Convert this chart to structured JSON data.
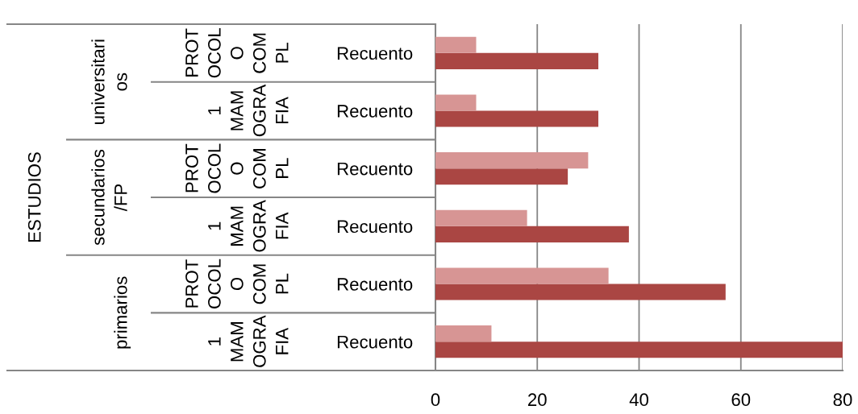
{
  "chart_data": {
    "type": "bar",
    "orientation": "horizontal",
    "categories": [
      "Recuento",
      "Recuento",
      "Recuento",
      "Recuento",
      "Recuento",
      "Recuento"
    ],
    "series": [
      {
        "color": "#aa4643",
        "values": [
          32,
          32,
          26,
          38,
          57,
          80
        ]
      },
      {
        "color": "#d79594",
        "values": [
          8,
          8,
          30,
          18,
          34,
          11
        ]
      }
    ],
    "xlim": [
      0,
      80
    ],
    "xticks": [
      0,
      20,
      40,
      60,
      80
    ],
    "grid": "x",
    "annotations": [
      "ESTUDIOS",
      "universitari\nos",
      "secundarios\n/FP",
      "primarios",
      "PROT\nOCOL\nO\nCOM\nPL",
      "1\nMAM\nOGRA\nFIA",
      "PROT\nOCOL\nO\nCOM\nPL",
      "1\nMAM\nOGRA\nFIA",
      "PROT\nOCOL\nO\nCOM\nPL",
      "1\nMAM\nOGRA\nFIA"
    ]
  }
}
